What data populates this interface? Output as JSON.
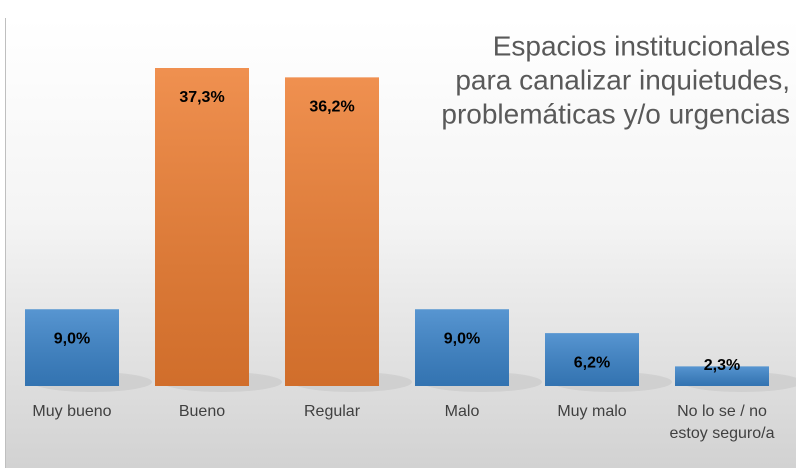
{
  "chart_data": {
    "type": "bar",
    "title": [
      "Espacios institucionales",
      "para canalizar inquietudes,",
      "problemáticas y/o urgencias"
    ],
    "categories": [
      "Muy bueno",
      "Bueno",
      "Regular",
      "Malo",
      "Muy malo",
      "No lo se / no estoy seguro/a"
    ],
    "values": [
      9.0,
      37.3,
      36.2,
      9.0,
      6.2,
      2.3
    ],
    "value_labels": [
      "9,0%",
      "37,3%",
      "36,2%",
      "9,0%",
      "6,2%",
      "2,3%"
    ],
    "colors": [
      "#3a83c9",
      "#ed7d31",
      "#ed7d31",
      "#3a83c9",
      "#3a83c9",
      "#3a83c9"
    ]
  }
}
